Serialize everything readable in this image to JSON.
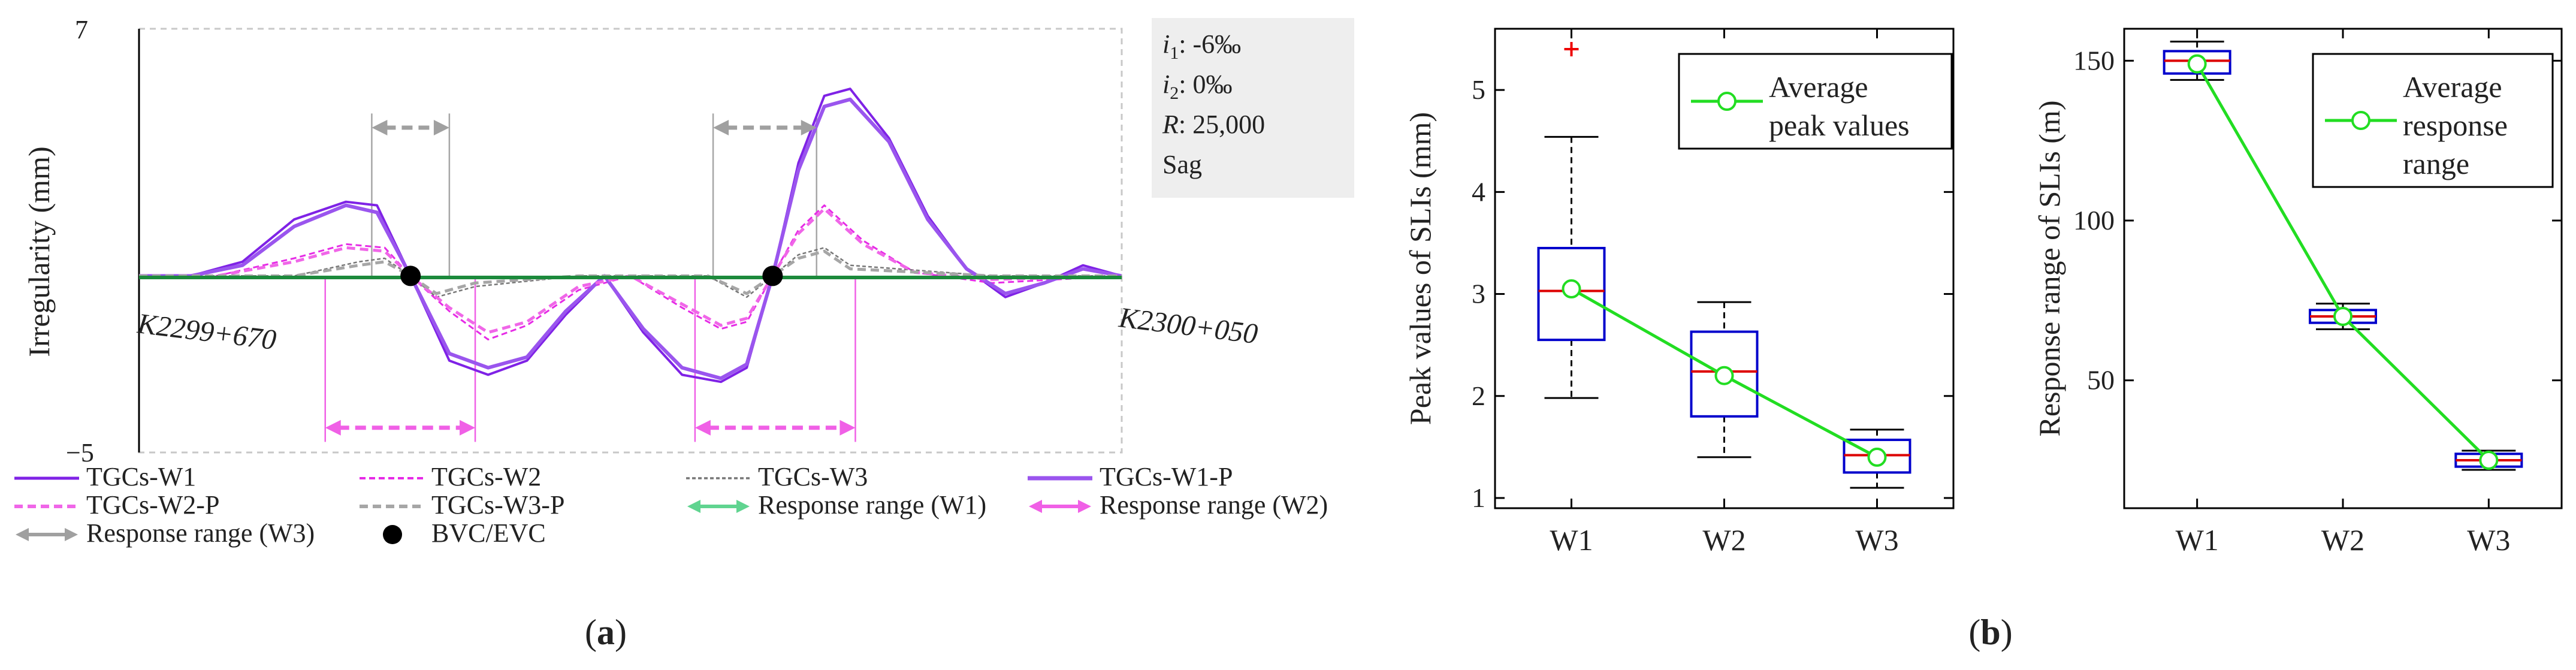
{
  "colors": {
    "w1": "#7f22e6",
    "w1p": "#9a55ee",
    "w2": "#e62be6",
    "w2p": "#f066e8",
    "w3": "#777777",
    "w3p": "#a6a6a6",
    "resp_w1": "#60d490",
    "resp_w2": "#f060e6",
    "resp_w3": "#a0a0a0",
    "baseline": "#1c8a3c",
    "boxEdge": "#0000cc",
    "median": "#dd0000",
    "outlier": "#ee0000",
    "avg": "#22dd22"
  },
  "panel_a": {
    "ylabel": "Irregularity (mm)",
    "ymax_label": "7",
    "ymin_label": "−5",
    "start_label": "K2299+670",
    "end_label": "K2300+050",
    "info": {
      "i1_sym": "i",
      "i1_sub": "1",
      "i1_val": ": -6‰",
      "i2_sym": "i",
      "i2_sub": "2",
      "i2_val": ": 0‰",
      "r_sym": "R",
      "r_val": ": 25,000",
      "type": "Sag"
    },
    "legend": [
      {
        "label": "TGCs-W1",
        "style": "w1"
      },
      {
        "label": "TGCs-W2",
        "style": "w2"
      },
      {
        "label": "TGCs-W3",
        "style": "w3"
      },
      {
        "label": "TGCs-W1-P",
        "style": "w1p"
      },
      {
        "label": "TGCs-W2-P",
        "style": "w2p"
      },
      {
        "label": "TGCs-W3-P",
        "style": "w3p"
      },
      {
        "label": "Response range (W1)",
        "style": "resp_w1"
      },
      {
        "label": "Response range (W2)",
        "style": "resp_w2"
      },
      {
        "label": "Response range (W3)",
        "style": "resp_w3"
      },
      {
        "label": "BVC/EVC",
        "style": "dot"
      }
    ],
    "caption": "(a)"
  },
  "chart_data": [
    {
      "type": "line",
      "ylim": [
        -5,
        7
      ],
      "xlim": [
        2299670,
        2300050
      ],
      "x_start": "K2299+670",
      "x_end": "K2300+050",
      "bvc_evc_x": [
        2299775,
        2299915
      ],
      "response_ranges": {
        "W1": [
          2299670,
          2300050
        ],
        "W2": [
          [
            2299742,
            2299800
          ],
          [
            2299885,
            2299947
          ]
        ],
        "W3": [
          [
            2299760,
            2299790
          ],
          [
            2299892,
            2299932
          ]
        ]
      },
      "series": [
        {
          "name": "TGCs-W1",
          "x": [
            2299670,
            2299690,
            2299710,
            2299730,
            2299750,
            2299762,
            2299775,
            2299790,
            2299805,
            2299820,
            2299835,
            2299850,
            2299865,
            2299880,
            2299895,
            2299905,
            2299915,
            2299925,
            2299935,
            2299945,
            2299960,
            2299975,
            2299990,
            2300005,
            2300020,
            2300035,
            2300050
          ],
          "y": [
            0,
            0,
            0.4,
            1.6,
            2.1,
            2.0,
            0,
            -2.4,
            -2.8,
            -2.4,
            -1.1,
            0,
            -1.6,
            -2.8,
            -3.0,
            -2.6,
            0,
            3.2,
            5.1,
            5.3,
            3.9,
            1.7,
            0.2,
            -0.6,
            -0.2,
            0.3,
            0
          ]
        },
        {
          "name": "TGCs-W2",
          "x": [
            2299670,
            2299700,
            2299730,
            2299750,
            2299765,
            2299775,
            2299790,
            2299805,
            2299820,
            2299840,
            2299860,
            2299880,
            2299895,
            2299905,
            2299915,
            2299925,
            2299935,
            2299950,
            2299970,
            2300000,
            2300050
          ],
          "y": [
            0,
            0,
            0.5,
            0.9,
            0.8,
            0,
            -1.0,
            -1.8,
            -1.4,
            -0.4,
            0,
            -0.9,
            -1.5,
            -1.3,
            0,
            1.3,
            2.0,
            1.0,
            0.1,
            -0.2,
            0
          ]
        },
        {
          "name": "TGCs-W3",
          "x": [
            2299670,
            2299730,
            2299755,
            2299765,
            2299775,
            2299785,
            2299800,
            2299840,
            2299890,
            2299905,
            2299915,
            2299925,
            2299935,
            2299945,
            2300000,
            2300050
          ],
          "y": [
            0,
            0,
            0.4,
            0.5,
            0,
            -0.6,
            -0.3,
            0,
            0,
            -0.6,
            0,
            0.6,
            0.8,
            0.3,
            0,
            0
          ]
        },
        {
          "name": "TGCs-W1-P",
          "x": [
            2299670,
            2299690,
            2299710,
            2299730,
            2299750,
            2299762,
            2299775,
            2299790,
            2299805,
            2299820,
            2299835,
            2299850,
            2299865,
            2299880,
            2299895,
            2299905,
            2299915,
            2299925,
            2299935,
            2299945,
            2299960,
            2299975,
            2299990,
            2300005,
            2300020,
            2300035,
            2300050
          ],
          "y": [
            0,
            0,
            0.3,
            1.4,
            2.0,
            1.8,
            0,
            -2.2,
            -2.6,
            -2.3,
            -1.0,
            0,
            -1.5,
            -2.6,
            -2.9,
            -2.5,
            0,
            3.0,
            4.8,
            5.0,
            3.8,
            1.6,
            0.2,
            -0.5,
            -0.2,
            0.2,
            0
          ]
        },
        {
          "name": "TGCs-W2-P",
          "x": [
            2299670,
            2299700,
            2299730,
            2299750,
            2299765,
            2299775,
            2299790,
            2299805,
            2299820,
            2299840,
            2299860,
            2299880,
            2299895,
            2299905,
            2299915,
            2299925,
            2299935,
            2299950,
            2299970,
            2300000,
            2300050
          ],
          "y": [
            0,
            0,
            0.4,
            0.8,
            0.7,
            0,
            -0.9,
            -1.6,
            -1.3,
            -0.3,
            0,
            -0.8,
            -1.4,
            -1.2,
            0,
            1.2,
            1.9,
            0.9,
            0.1,
            -0.1,
            0
          ]
        },
        {
          "name": "TGCs-W3-P",
          "x": [
            2299670,
            2299730,
            2299755,
            2299765,
            2299775,
            2299785,
            2299800,
            2299840,
            2299890,
            2299905,
            2299915,
            2299925,
            2299935,
            2299945,
            2300000,
            2300050
          ],
          "y": [
            0,
            0,
            0.3,
            0.4,
            0,
            -0.5,
            -0.2,
            0,
            0,
            -0.5,
            0,
            0.5,
            0.7,
            0.2,
            0,
            0
          ]
        }
      ]
    },
    {
      "type": "box",
      "ylabel": "Peak values of SLIs (mm)",
      "categories": [
        "W1",
        "W2",
        "W3"
      ],
      "ylim": [
        0.9,
        5.6
      ],
      "yticks": [
        1,
        2,
        3,
        4,
        5
      ],
      "boxes": [
        {
          "min": 1.98,
          "q1": 2.55,
          "median": 3.03,
          "q3": 3.45,
          "max": 4.54,
          "outliers": [
            5.4
          ]
        },
        {
          "min": 1.4,
          "q1": 1.8,
          "median": 2.24,
          "q3": 2.63,
          "max": 2.92,
          "outliers": []
        },
        {
          "min": 1.1,
          "q1": 1.25,
          "median": 1.42,
          "q3": 1.57,
          "max": 1.67,
          "outliers": []
        }
      ],
      "series": [
        {
          "name": "Average peak values",
          "values": [
            3.05,
            2.2,
            1.4
          ]
        }
      ],
      "legend_lines": [
        "Average",
        "peak values"
      ],
      "caption": "(b)"
    },
    {
      "type": "box",
      "ylabel": "Response range of SLIs (m)",
      "categories": [
        "W1",
        "W2",
        "W3"
      ],
      "ylim": [
        10,
        160
      ],
      "yticks": [
        50,
        100,
        150
      ],
      "boxes": [
        {
          "min": 144,
          "q1": 146,
          "median": 150,
          "q3": 153,
          "max": 156,
          "outliers": []
        },
        {
          "min": 66,
          "q1": 68,
          "median": 70,
          "q3": 72,
          "max": 74,
          "outliers": []
        },
        {
          "min": 22,
          "q1": 23,
          "median": 25,
          "q3": 27,
          "max": 28,
          "outliers": []
        }
      ],
      "series": [
        {
          "name": "Average response range",
          "values": [
            149,
            70,
            25
          ]
        }
      ],
      "legend_lines": [
        "Average",
        "response",
        "range"
      ]
    }
  ]
}
